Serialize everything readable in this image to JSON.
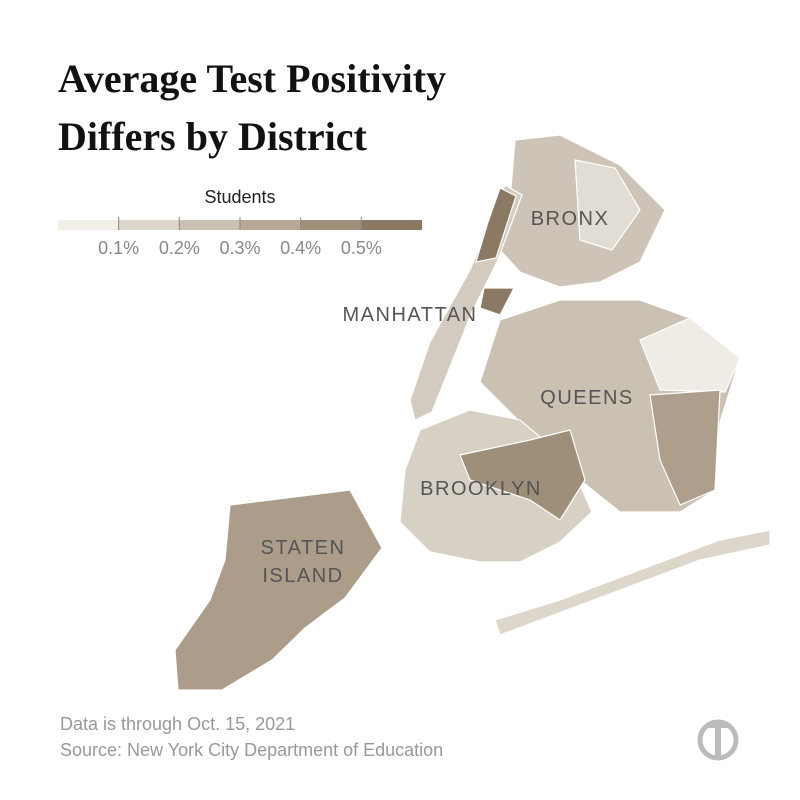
{
  "header": {
    "title_lines": [
      "Average Test Positivity",
      "Differs by District"
    ]
  },
  "legend": {
    "title": "Students",
    "colors": [
      "#f1efe8",
      "#ddd6cb",
      "#cbc1b2",
      "#b5a895",
      "#9e8f7b",
      "#8b7963"
    ],
    "ticks": [
      {
        "value": 0.1,
        "label": "0.1%"
      },
      {
        "value": 0.2,
        "label": "0.2%"
      },
      {
        "value": 0.3,
        "label": "0.3%"
      },
      {
        "value": 0.4,
        "label": "0.4%"
      },
      {
        "value": 0.5,
        "label": "0.5%"
      }
    ]
  },
  "map": {
    "labels": [
      "BRONX",
      "MANHATTAN",
      "QUEENS",
      "BROOKLYN",
      "STATEN",
      "ISLAND"
    ]
  },
  "footer": {
    "note": "Data is through Oct. 15, 2021",
    "source": "Source: New York City Department of Education"
  }
}
